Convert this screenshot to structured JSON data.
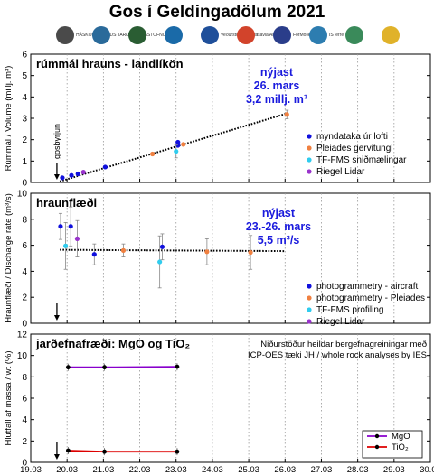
{
  "title": "Gos í Geldingadölum 2021",
  "logos": [
    {
      "icon": "haskoli-seal-icon",
      "text": "HÁSKÓLI ÍSLANDS JARÐVÍSINDASTOFNUN",
      "color": "#4a4a4a"
    },
    {
      "icon": "ni-logo-icon",
      "text": "",
      "color": "#2a6a9a"
    },
    {
      "icon": "bird-logo-icon",
      "text": "",
      "color": "#2a5d33"
    },
    {
      "icon": "landmaelingar-logo-icon",
      "text": "",
      "color": "#1a6aa8"
    },
    {
      "icon": "vedurstofa-logo-icon",
      "text": "Veðurstofa Íslands",
      "color": "#1f4f9a"
    },
    {
      "icon": "isavia-logo-icon",
      "text": "isavia ANS",
      "color": "#d2432b"
    },
    {
      "icon": "formoler-logo-icon",
      "text": "ForMoller",
      "color": "#2a3d8a"
    },
    {
      "icon": "isterre-logo-icon",
      "text": "ISTerre",
      "color": "#2d7db0"
    },
    {
      "icon": "lmi-logo-icon",
      "text": "",
      "color": "#3a8a5a"
    },
    {
      "icon": "almannavarnir-logo-icon",
      "text": "",
      "color": "#e0b22a"
    }
  ],
  "colors": {
    "blue": "#1010dd",
    "orange": "#f08040",
    "cyan": "#30ccee",
    "purple": "#9933cc",
    "mgo": "#8800cc",
    "tio2": "#dd0000",
    "annot": "#1a1add"
  },
  "x_axis": {
    "ticks": [
      "19.03",
      "20.03",
      "21.03",
      "22.03",
      "23.03",
      "24.03",
      "25.03",
      "26.03",
      "27.03",
      "28.03",
      "29.03",
      "30.03"
    ]
  },
  "chart_data": [
    {
      "type": "scatter",
      "panel_title": "rúmmál hrauns - landlíkön",
      "ylabel": "Rúmmál / Volume (millj. m³)",
      "ylim": [
        0,
        6
      ],
      "yticks": [
        0,
        1,
        2,
        3,
        4,
        5,
        6
      ],
      "xlim": [
        "19.03",
        "30.03"
      ],
      "grid": "vertical dotted",
      "start_marker": "gosbyrjun",
      "annotation": [
        "nýjast",
        "26. mars",
        "3,2 millj. m³"
      ],
      "legend": [
        "myndataka úr lofti",
        "Pleiades gervitungl",
        "TF-FMS sniðmælingar",
        "Riegel Lidar"
      ],
      "legend_colors": [
        "blue",
        "orange",
        "cyan",
        "purple"
      ],
      "trend": {
        "x": [
          "19.8",
          "26.0"
        ],
        "y": [
          0.05,
          3.2
        ]
      },
      "points": [
        {
          "x": "19.87",
          "y": 0.22,
          "c": "blue"
        },
        {
          "x": "20.12",
          "y": 0.33,
          "c": "blue"
        },
        {
          "x": "20.30",
          "y": 0.4,
          "c": "blue"
        },
        {
          "x": "20.45",
          "y": 0.48,
          "c": "purple"
        },
        {
          "x": "21.05",
          "y": 0.72,
          "c": "blue"
        },
        {
          "x": "22.35",
          "y": 1.33,
          "c": "orange"
        },
        {
          "x": "23.05",
          "y": 1.88,
          "c": "blue"
        },
        {
          "x": "23.05",
          "y": 1.73,
          "c": "blue"
        },
        {
          "x": "23.00",
          "y": 1.45,
          "c": "cyan",
          "err": 0.3
        },
        {
          "x": "23.20",
          "y": 1.78,
          "c": "orange"
        },
        {
          "x": "26.05",
          "y": 3.18,
          "c": "orange",
          "err": 0.2
        }
      ]
    },
    {
      "type": "scatter",
      "panel_title": "hraunflæði",
      "ylabel": "Hraunflæði / Discharge rate (m³/s)",
      "ylim": [
        0,
        10
      ],
      "yticks": [
        0,
        2,
        4,
        6,
        8,
        10
      ],
      "xlim": [
        "19.03",
        "30.03"
      ],
      "annotation": [
        "nýjast",
        "23.-26. mars",
        "5,5 m³/s"
      ],
      "legend": [
        "photogrammetry - aircraft",
        "photogrammetry - Pleiades",
        "TF-FMS profiling",
        "Riegel Lidar"
      ],
      "legend_colors": [
        "blue",
        "orange",
        "cyan",
        "purple"
      ],
      "trend": {
        "x": [
          "19.8",
          "26.0"
        ],
        "y": [
          5.65,
          5.55
        ]
      },
      "points": [
        {
          "x": "19.82",
          "y": 7.45,
          "c": "blue",
          "err": 1.0
        },
        {
          "x": "19.96",
          "y": 5.95,
          "c": "cyan",
          "err": 1.8
        },
        {
          "x": "20.10",
          "y": 7.45,
          "c": "blue",
          "err": 1.5
        },
        {
          "x": "20.28",
          "y": 6.5,
          "c": "purple",
          "err": 1.4
        },
        {
          "x": "20.75",
          "y": 5.3,
          "c": "blue",
          "err": 0.8
        },
        {
          "x": "21.55",
          "y": 5.6,
          "c": "orange",
          "err": 0.5
        },
        {
          "x": "22.55",
          "y": 4.72,
          "c": "cyan",
          "err": 2.0
        },
        {
          "x": "22.62",
          "y": 5.88,
          "c": "blue",
          "err": 1.0
        },
        {
          "x": "23.85",
          "y": 5.5,
          "c": "orange",
          "err": 1.0
        },
        {
          "x": "25.05",
          "y": 5.45,
          "c": "orange",
          "err": 1.3
        }
      ]
    },
    {
      "type": "line",
      "panel_title": "jarðefnafræði: MgO og TiO₂",
      "ylabel": "Hlutfall af massa / wt (%)",
      "ylim": [
        0,
        12
      ],
      "yticks": [
        0,
        2,
        4,
        6,
        8,
        10,
        12
      ],
      "xlim": [
        "19.03",
        "30.03"
      ],
      "annotation": [
        "Niðurstöður heildar bergefnagreiningar með",
        "ICP-OES tæki JH / whole rock analyses by IES"
      ],
      "legend": [
        "MgO",
        "TiO₂"
      ],
      "legend_colors": [
        "mgo",
        "tio2"
      ],
      "series": [
        {
          "name": "MgO",
          "c": "mgo",
          "x": [
            "20.03",
            "21.03",
            "23.03"
          ],
          "y": [
            8.9,
            8.9,
            8.95
          ]
        },
        {
          "name": "TiO₂",
          "c": "tio2",
          "x": [
            "20.03",
            "21.03",
            "23.03"
          ],
          "y": [
            1.1,
            1.0,
            1.0
          ]
        }
      ]
    }
  ]
}
